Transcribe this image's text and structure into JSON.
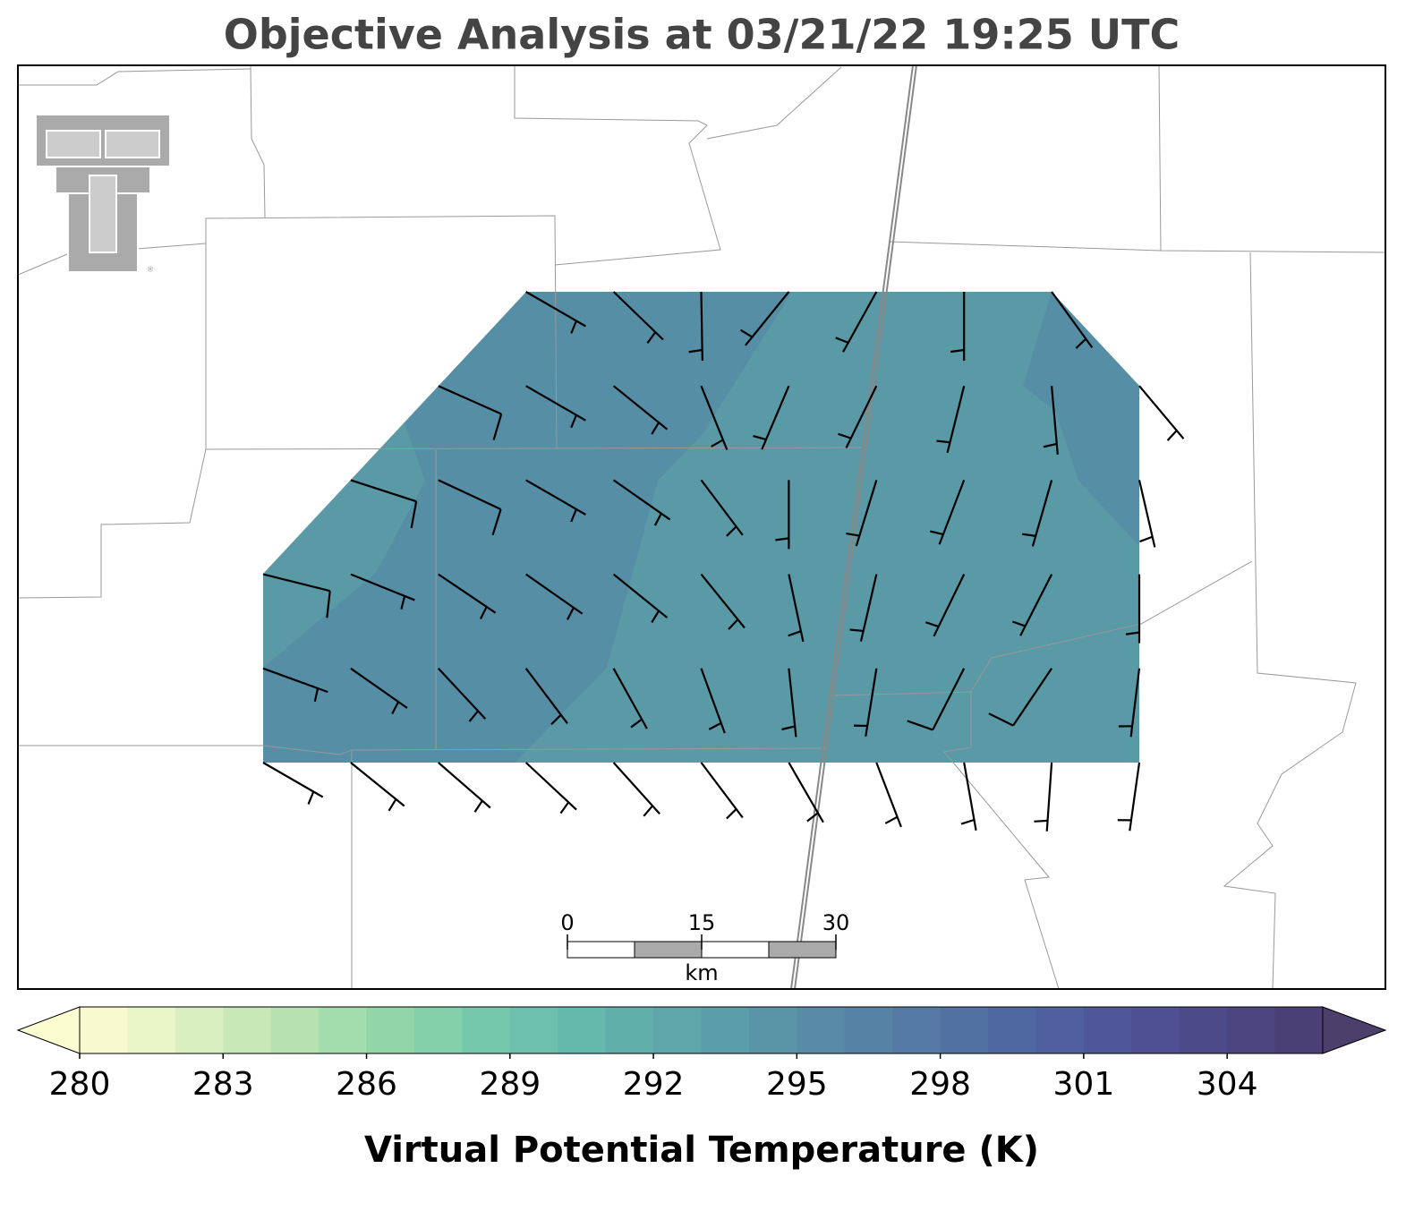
{
  "map": {
    "title": "Objective Analysis at 03/21/22 19:25 UTC",
    "logo_mark": "®",
    "analysis_color": "#5a99a6",
    "barbs": {
      "direction": [
        [
          null,
          null,
          null,
          120,
          134,
          179,
          219,
          209,
          180,
          144,
          null
        ],
        [
          null,
          null,
          114,
          120,
          129,
          158,
          203,
          206,
          194,
          175,
          140
        ],
        [
          null,
          108,
          115,
          120,
          125,
          143,
          180,
          197,
          201,
          196,
          167
        ],
        [
          104,
          112,
          124,
          125,
          129,
          141,
          168,
          193,
          206,
          207,
          180
        ],
        [
          110,
          125,
          137,
          143,
          151,
          160,
          174,
          189,
          207,
          214,
          187
        ],
        [
          120,
          129,
          131,
          133,
          138,
          143,
          150,
          159,
          170,
          184,
          188
        ]
      ],
      "speed": [
        [
          null,
          null,
          null,
          5,
          5,
          5,
          5,
          5,
          5,
          5,
          null
        ],
        [
          null,
          null,
          10,
          5,
          5,
          5,
          5,
          5,
          5,
          5,
          5
        ],
        [
          null,
          10,
          10,
          5,
          5,
          5,
          5,
          5,
          5,
          5,
          5
        ],
        [
          10,
          5,
          5,
          5,
          5,
          5,
          5,
          5,
          5,
          5,
          5
        ],
        [
          5,
          5,
          5,
          5,
          5,
          5,
          5,
          5,
          10,
          10,
          5
        ],
        [
          5,
          5,
          5,
          5,
          5,
          5,
          5,
          5,
          5,
          5,
          5
        ]
      ]
    },
    "scale_bar": {
      "ticks": [
        0,
        15,
        30
      ],
      "unit": "km"
    },
    "colorbar": {
      "label": "Virtual Potential Temperature (K)",
      "lim": [
        280,
        306
      ],
      "ticks": [
        280,
        283,
        286,
        289,
        292,
        295,
        298,
        301,
        304
      ],
      "under_color": "#fbfdd1",
      "over_color": "#4b3f6b",
      "colors": [
        "#f7f9cf",
        "#eaf5c8",
        "#daefc0",
        "#c8e8b8",
        "#b5e2b0",
        "#a3dcad",
        "#92d5a9",
        "#82cfaa",
        "#75c8ab",
        "#6cc0ad",
        "#65b8ac",
        "#60afaa",
        "#5ea6a9",
        "#5b9da8",
        "#5a94a7",
        "#588ba6",
        "#5682a5",
        "#547aa4",
        "#5271a3",
        "#5068a2",
        "#4f5f9f",
        "#4f579a",
        "#4e5093",
        "#4d4a8a",
        "#4c4580",
        "#4b4076"
      ]
    }
  }
}
